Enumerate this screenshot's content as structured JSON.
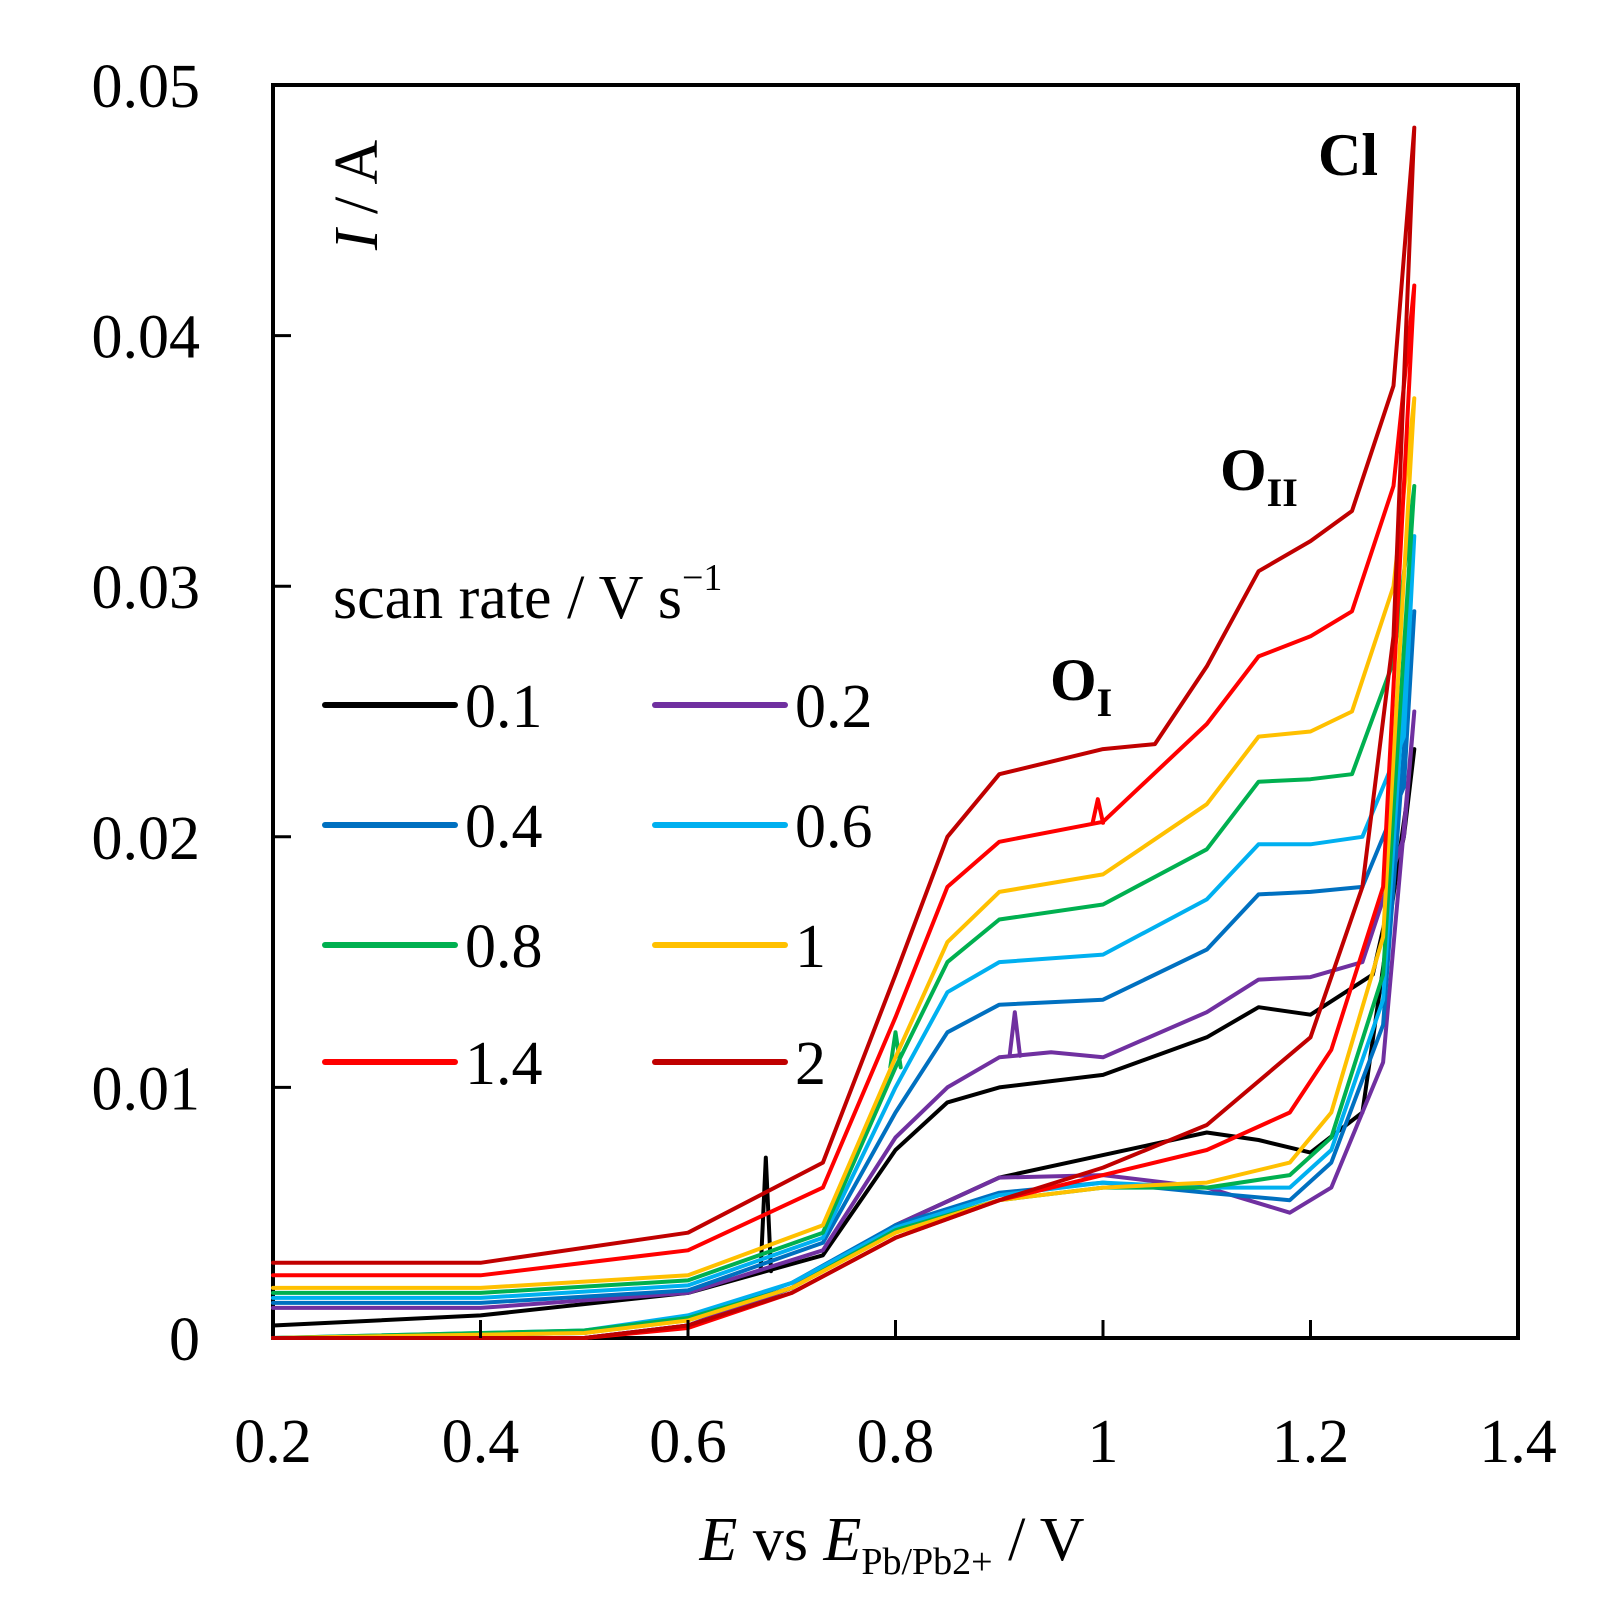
{
  "chart_data": {
    "type": "line",
    "title": "",
    "xlabel": {
      "main": "E",
      "mid": " vs ",
      "sub_main": "E",
      "sub": "Pb/Pb2+",
      "unit": " / V"
    },
    "ylabel": {
      "main": "I",
      "unit": " / A"
    },
    "xlim": [
      0.2,
      1.4
    ],
    "ylim": [
      0,
      0.05
    ],
    "xticks": [
      "0.2",
      "0.4",
      "0.6",
      "0.8",
      "1",
      "1.2",
      "1.4"
    ],
    "yticks": [
      "0",
      "0.01",
      "0.02",
      "0.03",
      "0.04",
      "0.05"
    ],
    "legend": {
      "title": "scan rate / V s",
      "title_sup": "−1",
      "placement": "center-left"
    },
    "annotations": [
      {
        "label": "O",
        "sub": "I",
        "x": 1.02,
        "y": 0.0256
      },
      {
        "label": "O",
        "sub": "II",
        "x": 1.21,
        "y": 0.0347
      },
      {
        "label": "Cl",
        "x": 1.29,
        "y": 0.0466
      }
    ],
    "series": [
      {
        "name": "0.1",
        "color": "#000000",
        "forward": [
          [
            0.2,
            0.0005
          ],
          [
            0.4,
            0.0009
          ],
          [
            0.6,
            0.0018
          ],
          [
            0.73,
            0.0033
          ],
          [
            0.8,
            0.0075
          ],
          [
            0.85,
            0.0094
          ],
          [
            0.9,
            0.01
          ],
          [
            1.0,
            0.0105
          ],
          [
            1.1,
            0.012
          ],
          [
            1.15,
            0.0132
          ],
          [
            1.2,
            0.0129
          ],
          [
            1.26,
            0.0145
          ],
          [
            1.29,
            0.02
          ],
          [
            1.3,
            0.0235
          ]
        ],
        "reverse": [
          [
            1.3,
            0.0235
          ],
          [
            1.25,
            0.009
          ],
          [
            1.2,
            0.0074
          ],
          [
            1.15,
            0.0079
          ],
          [
            1.1,
            0.0082
          ],
          [
            1.0,
            0.0073
          ],
          [
            0.9,
            0.0064
          ],
          [
            0.8,
            0.0045
          ],
          [
            0.7,
            0.002
          ],
          [
            0.6,
            0.0005
          ],
          [
            0.5,
            0.0
          ],
          [
            0.4,
            0.0
          ],
          [
            0.2,
            0.0
          ]
        ],
        "spikes": [
          [
            0.675,
            0.0072
          ]
        ]
      },
      {
        "name": "0.2",
        "color": "#7030A0",
        "forward": [
          [
            0.2,
            0.0012
          ],
          [
            0.4,
            0.0012
          ],
          [
            0.6,
            0.0018
          ],
          [
            0.73,
            0.0035
          ],
          [
            0.8,
            0.008
          ],
          [
            0.85,
            0.01
          ],
          [
            0.9,
            0.0112
          ],
          [
            0.95,
            0.0114
          ],
          [
            1.0,
            0.0112
          ],
          [
            1.1,
            0.013
          ],
          [
            1.15,
            0.0143
          ],
          [
            1.2,
            0.0144
          ],
          [
            1.25,
            0.015
          ],
          [
            1.29,
            0.02
          ],
          [
            1.3,
            0.025
          ]
        ],
        "reverse": [
          [
            1.3,
            0.025
          ],
          [
            1.27,
            0.011
          ],
          [
            1.22,
            0.006
          ],
          [
            1.18,
            0.005
          ],
          [
            1.1,
            0.006
          ],
          [
            1.0,
            0.0065
          ],
          [
            0.9,
            0.0064
          ],
          [
            0.8,
            0.0045
          ],
          [
            0.7,
            0.002
          ],
          [
            0.6,
            0.0005
          ],
          [
            0.5,
            0.0
          ],
          [
            0.2,
            0.0
          ]
        ],
        "spikes": [
          [
            0.915,
            0.013
          ]
        ]
      },
      {
        "name": "0.4",
        "color": "#0070C0",
        "forward": [
          [
            0.2,
            0.0014
          ],
          [
            0.4,
            0.0014
          ],
          [
            0.6,
            0.0019
          ],
          [
            0.73,
            0.0038
          ],
          [
            0.8,
            0.009
          ],
          [
            0.85,
            0.0122
          ],
          [
            0.9,
            0.0133
          ],
          [
            1.0,
            0.0135
          ],
          [
            1.1,
            0.0155
          ],
          [
            1.15,
            0.0177
          ],
          [
            1.2,
            0.0178
          ],
          [
            1.25,
            0.018
          ],
          [
            1.29,
            0.022
          ],
          [
            1.3,
            0.029
          ]
        ],
        "reverse": [
          [
            1.3,
            0.029
          ],
          [
            1.27,
            0.0125
          ],
          [
            1.22,
            0.007
          ],
          [
            1.18,
            0.0055
          ],
          [
            1.1,
            0.0058
          ],
          [
            1.0,
            0.0062
          ],
          [
            0.9,
            0.0058
          ],
          [
            0.8,
            0.0045
          ],
          [
            0.7,
            0.0022
          ],
          [
            0.6,
            0.0008
          ],
          [
            0.5,
            0.0002
          ],
          [
            0.2,
            0.0
          ]
        ]
      },
      {
        "name": "0.6",
        "color": "#00B0F0",
        "forward": [
          [
            0.2,
            0.0016
          ],
          [
            0.4,
            0.0016
          ],
          [
            0.6,
            0.0021
          ],
          [
            0.73,
            0.004
          ],
          [
            0.8,
            0.01
          ],
          [
            0.85,
            0.0138
          ],
          [
            0.9,
            0.015
          ],
          [
            1.0,
            0.0153
          ],
          [
            1.1,
            0.0175
          ],
          [
            1.15,
            0.0197
          ],
          [
            1.2,
            0.0197
          ],
          [
            1.25,
            0.02
          ],
          [
            1.29,
            0.024
          ],
          [
            1.3,
            0.032
          ]
        ],
        "reverse": [
          [
            1.3,
            0.032
          ],
          [
            1.27,
            0.0135
          ],
          [
            1.22,
            0.0075
          ],
          [
            1.18,
            0.006
          ],
          [
            1.1,
            0.006
          ],
          [
            1.0,
            0.0062
          ],
          [
            0.9,
            0.0057
          ],
          [
            0.8,
            0.0044
          ],
          [
            0.7,
            0.0022
          ],
          [
            0.6,
            0.0009
          ],
          [
            0.5,
            0.0003
          ],
          [
            0.2,
            0.0
          ]
        ]
      },
      {
        "name": "0.8",
        "color": "#00B050",
        "forward": [
          [
            0.2,
            0.0018
          ],
          [
            0.4,
            0.0018
          ],
          [
            0.6,
            0.0023
          ],
          [
            0.73,
            0.0042
          ],
          [
            0.8,
            0.0108
          ],
          [
            0.85,
            0.015
          ],
          [
            0.9,
            0.0167
          ],
          [
            1.0,
            0.0173
          ],
          [
            1.1,
            0.0195
          ],
          [
            1.15,
            0.0222
          ],
          [
            1.2,
            0.0223
          ],
          [
            1.24,
            0.0225
          ],
          [
            1.28,
            0.027
          ],
          [
            1.3,
            0.034
          ]
        ],
        "reverse": [
          [
            1.3,
            0.034
          ],
          [
            1.27,
            0.0145
          ],
          [
            1.22,
            0.008
          ],
          [
            1.18,
            0.0065
          ],
          [
            1.1,
            0.006
          ],
          [
            1.0,
            0.006
          ],
          [
            0.9,
            0.0055
          ],
          [
            0.8,
            0.0043
          ],
          [
            0.7,
            0.002
          ],
          [
            0.6,
            0.0008
          ],
          [
            0.5,
            0.0003
          ],
          [
            0.2,
            0.0
          ]
        ],
        "spikes": [
          [
            0.8,
            0.0122
          ]
        ]
      },
      {
        "name": "1",
        "color": "#FFC000",
        "forward": [
          [
            0.2,
            0.002
          ],
          [
            0.4,
            0.002
          ],
          [
            0.6,
            0.0025
          ],
          [
            0.73,
            0.0045
          ],
          [
            0.8,
            0.0112
          ],
          [
            0.85,
            0.0158
          ],
          [
            0.9,
            0.0178
          ],
          [
            1.0,
            0.0185
          ],
          [
            1.1,
            0.0213
          ],
          [
            1.15,
            0.024
          ],
          [
            1.2,
            0.0242
          ],
          [
            1.24,
            0.025
          ],
          [
            1.28,
            0.03
          ],
          [
            1.3,
            0.0375
          ]
        ],
        "reverse": [
          [
            1.3,
            0.0375
          ],
          [
            1.27,
            0.016
          ],
          [
            1.22,
            0.009
          ],
          [
            1.18,
            0.007
          ],
          [
            1.1,
            0.0062
          ],
          [
            1.0,
            0.006
          ],
          [
            0.9,
            0.0055
          ],
          [
            0.8,
            0.0042
          ],
          [
            0.7,
            0.002
          ],
          [
            0.6,
            0.0007
          ],
          [
            0.5,
            0.0002
          ],
          [
            0.2,
            0.0
          ]
        ]
      },
      {
        "name": "1.4",
        "color": "#FF0000",
        "forward": [
          [
            0.2,
            0.0025
          ],
          [
            0.4,
            0.0025
          ],
          [
            0.6,
            0.0035
          ],
          [
            0.73,
            0.006
          ],
          [
            0.8,
            0.0128
          ],
          [
            0.85,
            0.018
          ],
          [
            0.9,
            0.0198
          ],
          [
            1.0,
            0.0206
          ],
          [
            1.1,
            0.0245
          ],
          [
            1.15,
            0.0272
          ],
          [
            1.2,
            0.028
          ],
          [
            1.24,
            0.029
          ],
          [
            1.28,
            0.034
          ],
          [
            1.3,
            0.042
          ]
        ],
        "reverse": [
          [
            1.3,
            0.042
          ],
          [
            1.27,
            0.018
          ],
          [
            1.22,
            0.0115
          ],
          [
            1.18,
            0.009
          ],
          [
            1.1,
            0.0075
          ],
          [
            1.0,
            0.0065
          ],
          [
            0.9,
            0.0055
          ],
          [
            0.8,
            0.004
          ],
          [
            0.7,
            0.0018
          ],
          [
            0.6,
            0.0004
          ],
          [
            0.5,
            0.0
          ],
          [
            0.2,
            0.0
          ]
        ],
        "spikes": [
          [
            0.995,
            0.0215
          ]
        ]
      },
      {
        "name": "2",
        "color": "#C00000",
        "forward": [
          [
            0.2,
            0.003
          ],
          [
            0.4,
            0.003
          ],
          [
            0.6,
            0.0042
          ],
          [
            0.73,
            0.007
          ],
          [
            0.8,
            0.0145
          ],
          [
            0.85,
            0.02
          ],
          [
            0.9,
            0.0225
          ],
          [
            1.0,
            0.0235
          ],
          [
            1.05,
            0.0237
          ],
          [
            1.1,
            0.0268
          ],
          [
            1.15,
            0.0306
          ],
          [
            1.2,
            0.0318
          ],
          [
            1.24,
            0.033
          ],
          [
            1.28,
            0.038
          ],
          [
            1.3,
            0.0483
          ]
        ],
        "reverse": [
          [
            1.3,
            0.0483
          ],
          [
            1.28,
            0.028
          ],
          [
            1.25,
            0.018
          ],
          [
            1.2,
            0.012
          ],
          [
            1.1,
            0.0085
          ],
          [
            1.0,
            0.0068
          ],
          [
            0.9,
            0.0055
          ],
          [
            0.8,
            0.004
          ],
          [
            0.7,
            0.0018
          ],
          [
            0.6,
            0.0005
          ],
          [
            0.5,
            0.0
          ],
          [
            0.2,
            0.0
          ]
        ]
      }
    ]
  }
}
